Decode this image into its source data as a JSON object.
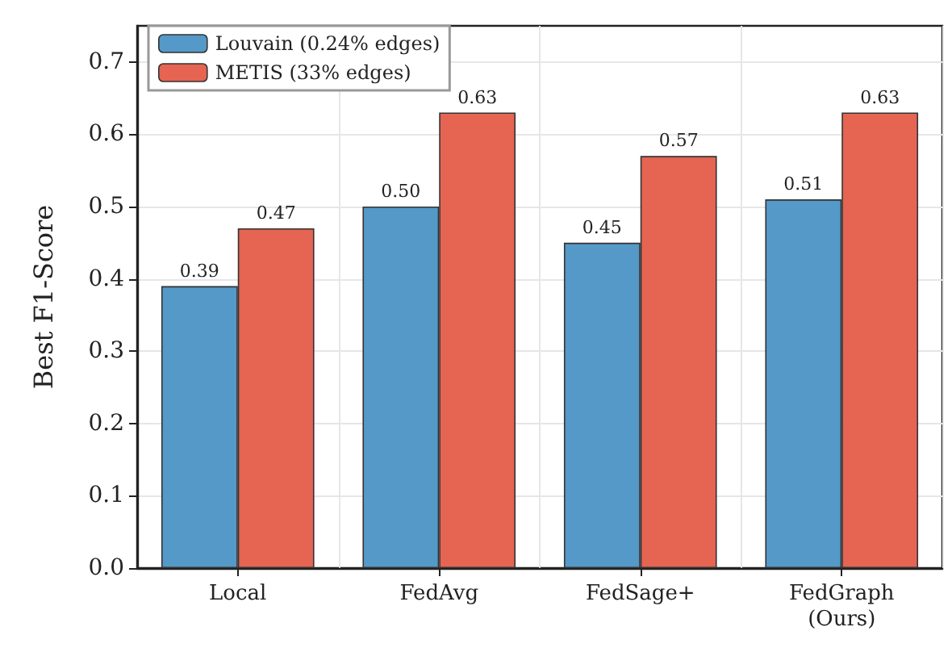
{
  "chart_data": {
    "type": "bar",
    "categories": [
      "Local",
      "FedAvg",
      "FedSage+",
      "FedGraph\n(Ours)"
    ],
    "series": [
      {
        "name": "Louvain (0.24% edges)",
        "color": "#5499c7",
        "values": [
          0.39,
          0.5,
          0.45,
          0.51
        ],
        "value_labels": [
          "0.39",
          "0.50",
          "0.45",
          "0.51"
        ]
      },
      {
        "name": "METIS (33% edges)",
        "color": "#e56452",
        "values": [
          0.47,
          0.63,
          0.57,
          0.63
        ],
        "value_labels": [
          "0.47",
          "0.63",
          "0.57",
          "0.63"
        ]
      }
    ],
    "ylabel": "Best F1-Score",
    "ylim": [
      0,
      0.75
    ],
    "yticks": [
      {
        "value": 0,
        "label": "0.0"
      },
      {
        "value": 0.1,
        "label": "0.1"
      },
      {
        "value": 0.2,
        "label": "0.2"
      },
      {
        "value": 0.3,
        "label": "0.3"
      },
      {
        "value": 0.4,
        "label": "0.4"
      },
      {
        "value": 0.5,
        "label": "0.5"
      },
      {
        "value": 0.6,
        "label": "0.6"
      },
      {
        "value": 0.7,
        "label": "0.7"
      }
    ],
    "grid": true,
    "legend": "top left"
  }
}
